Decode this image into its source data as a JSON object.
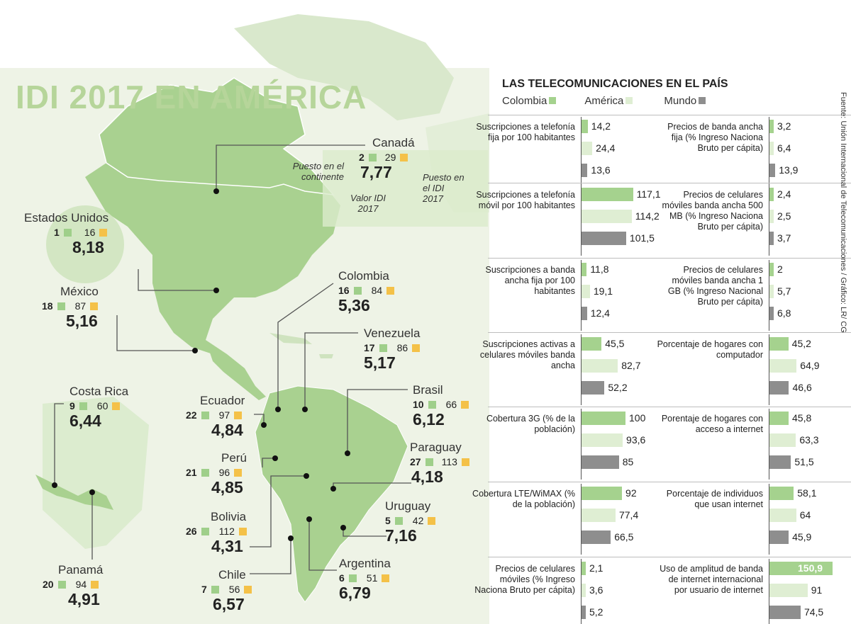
{
  "map": {
    "title": "IDI 2017 EN AMÉRICA",
    "annotations": {
      "continent_rank": "Puesto en el continente",
      "idi_value": "Valor IDI 2017",
      "idi_rank": "Puesto en el IDI 2017"
    },
    "countries": [
      {
        "name": "Canadá",
        "continent_rank": "2",
        "idi_rank": "29",
        "value": "7,77"
      },
      {
        "name": "Estados Unidos",
        "continent_rank": "1",
        "idi_rank": "16",
        "value": "8,18"
      },
      {
        "name": "México",
        "continent_rank": "18",
        "idi_rank": "87",
        "value": "5,16"
      },
      {
        "name": "Colombia",
        "continent_rank": "16",
        "idi_rank": "84",
        "value": "5,36"
      },
      {
        "name": "Venezuela",
        "continent_rank": "17",
        "idi_rank": "86",
        "value": "5,17"
      },
      {
        "name": "Costa Rica",
        "continent_rank": "9",
        "idi_rank": "60",
        "value": "6,44"
      },
      {
        "name": "Ecuador",
        "continent_rank": "22",
        "idi_rank": "97",
        "value": "4,84"
      },
      {
        "name": "Brasil",
        "continent_rank": "10",
        "idi_rank": "66",
        "value": "6,12"
      },
      {
        "name": "Perú",
        "continent_rank": "21",
        "idi_rank": "96",
        "value": "4,85"
      },
      {
        "name": "Paraguay",
        "continent_rank": "27",
        "idi_rank": "113",
        "value": "4,18"
      },
      {
        "name": "Bolivia",
        "continent_rank": "26",
        "idi_rank": "112",
        "value": "4,31"
      },
      {
        "name": "Uruguay",
        "continent_rank": "5",
        "idi_rank": "42",
        "value": "7,16"
      },
      {
        "name": "Panamá",
        "continent_rank": "20",
        "idi_rank": "94",
        "value": "4,91"
      },
      {
        "name": "Chile",
        "continent_rank": "7",
        "idi_rank": "56",
        "value": "6,57"
      },
      {
        "name": "Argentina",
        "continent_rank": "6",
        "idi_rank": "51",
        "value": "6,79"
      }
    ]
  },
  "telecom": {
    "title": "LAS TELECOMUNICACIONES EN EL PAÍS",
    "legend": [
      "Colombia",
      "América",
      "Mundo"
    ],
    "source": "Fuente: Unión Internacional de Telecomunicaciones / Gráfico: LR/ CG",
    "colors": {
      "colombia": "#a5d28e",
      "america": "#dfeed3",
      "mundo": "#8e8e8e"
    }
  },
  "chart_data": {
    "type": "bar",
    "title": "LAS TELECOMUNICACIONES EN EL PAÍS",
    "series_names": [
      "Colombia",
      "América",
      "Mundo"
    ],
    "indicators": [
      {
        "label": "Suscripciones a telefonía fija por 100 habitantes",
        "values": [
          14.2,
          24.4,
          13.6
        ],
        "labels": [
          "14,2",
          "24,4",
          "13,6"
        ]
      },
      {
        "label": "Precios de banda ancha fija (% Ingreso Naciona Bruto per cápita)",
        "values": [
          3.2,
          6.4,
          13.9
        ],
        "labels": [
          "3,2",
          "6,4",
          "13,9"
        ]
      },
      {
        "label": "Suscripciones a telefonía móvil por 100 habitantes",
        "values": [
          117.1,
          114.2,
          101.5
        ],
        "labels": [
          "117,1",
          "114,2",
          "101,5"
        ]
      },
      {
        "label": "Precios de celulares móviles banda ancha 500 MB (% Ingreso Naciona Bruto per cápita)",
        "values": [
          2.4,
          2.5,
          3.7
        ],
        "labels": [
          "2,4",
          "2,5",
          "3,7"
        ]
      },
      {
        "label": "Suscripciones a banda ancha fija por 100 habitantes",
        "values": [
          11.8,
          19.1,
          12.4
        ],
        "labels": [
          "11,8",
          "19,1",
          "12,4"
        ]
      },
      {
        "label": "Precios de celulares móviles banda ancha 1 GB (% Ingreso Nacional Bruto per cápita)",
        "values": [
          2,
          5.7,
          6.8
        ],
        "labels": [
          "2",
          "5,7",
          "6,8"
        ]
      },
      {
        "label": "Suscripciones activas a celulares móviles banda ancha",
        "values": [
          45.5,
          82.7,
          52.2
        ],
        "labels": [
          "45,5",
          "82,7",
          "52,2"
        ]
      },
      {
        "label": "Porcentaje de hogares con computador",
        "values": [
          45.2,
          64.9,
          46.6
        ],
        "labels": [
          "45,2",
          "64,9",
          "46,6"
        ]
      },
      {
        "label": "Cobertura 3G (% de la población)",
        "values": [
          100,
          93.6,
          85
        ],
        "labels": [
          "100",
          "93,6",
          "85"
        ]
      },
      {
        "label": "Porentaje de hogares con acceso a internet",
        "values": [
          45.8,
          63.3,
          51.5
        ],
        "labels": [
          "45,8",
          "63,3",
          "51,5"
        ]
      },
      {
        "label": "Cobertura LTE/WiMAX (% de la población)",
        "values": [
          92,
          77.4,
          66.5
        ],
        "labels": [
          "92",
          "77,4",
          "66,5"
        ]
      },
      {
        "label": "Porcentaje de individuos que usan internet",
        "values": [
          58.1,
          64,
          45.9
        ],
        "labels": [
          "58,1",
          "64",
          "45,9"
        ]
      },
      {
        "label": "Precios de celulares móviles (% Ingreso Naciona Bruto per cápita)",
        "values": [
          2.1,
          3.6,
          5.2
        ],
        "labels": [
          "2,1",
          "3,6",
          "5,2"
        ]
      },
      {
        "label": "Uso de amplitud de banda de internet internacional por usuario de internet",
        "values": [
          150.9,
          91,
          74.5
        ],
        "labels": [
          "150,9",
          "91",
          "74,5"
        ]
      }
    ]
  }
}
